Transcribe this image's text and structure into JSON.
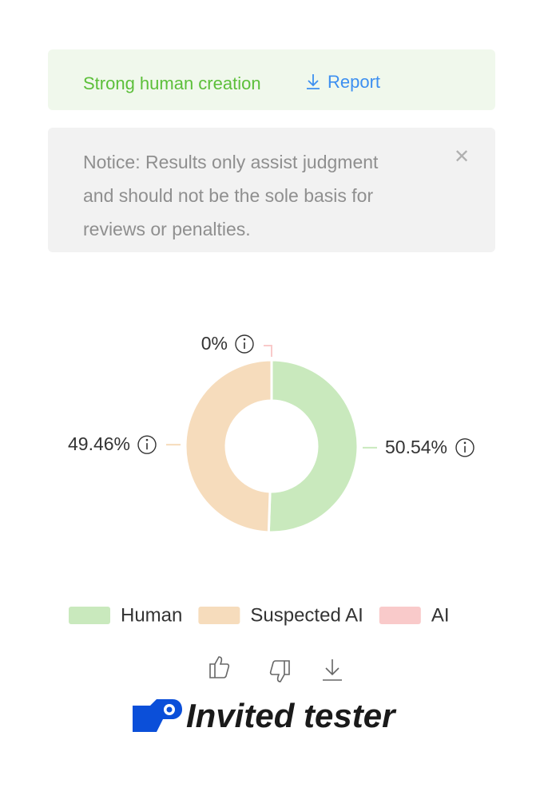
{
  "banner": {
    "result": "Strong human creation",
    "link": "Report"
  },
  "notice": {
    "lines": [
      "Notice: Results only assist judgment",
      "and should not be the sole basis for",
      "reviews or penalties."
    ]
  },
  "chart_data": {
    "type": "donut",
    "categories": [
      "Human",
      "Suspected AI",
      "AI"
    ],
    "values": [
      50.54,
      49.46,
      0
    ],
    "value_labels": [
      "50.54%",
      "49.46%",
      "0%"
    ],
    "colors": [
      "#c9e9bd",
      "#f6dcbc",
      "#f9caca"
    ]
  },
  "footer": {
    "badge": "Invited tester"
  }
}
